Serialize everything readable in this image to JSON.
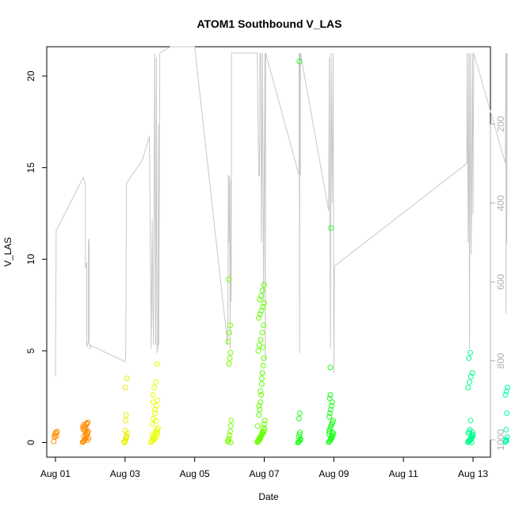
{
  "chart_data": {
    "type": "scatter",
    "title": "ATOM1 Southbound V_LAS",
    "xlabel": "Date",
    "ylabel": "V_LAS",
    "x_ticks": [
      "Aug 01",
      "Aug 03",
      "Aug 05",
      "Aug 07",
      "Aug 09",
      "Aug 11",
      "Aug 13"
    ],
    "y_ticks": [
      "0",
      "5",
      "10",
      "15",
      "20"
    ],
    "y2_ticks": [
      "200",
      "400",
      "600",
      "800",
      "1000"
    ],
    "xlim_days": [
      -0.25,
      12.5
    ],
    "ylim": [
      -0.8,
      21.6
    ],
    "y2lim": [
      1044,
      4
    ],
    "grid": false,
    "legend": "none",
    "colors": {
      "line": "#c8c8c8",
      "right_axis": "#b0b0b0",
      "ramp": [
        "#ff8000",
        "#ffff00",
        "#00ff00",
        "#00ffc0"
      ]
    },
    "groups": [
      {
        "color": "#ff8c00",
        "x": [
          -0.05,
          -0.03,
          -0.02,
          0,
          0.01,
          0.03,
          0.05
        ],
        "y": [
          0.05,
          0.3,
          0.4,
          0.5,
          0.55,
          0.35,
          0.6
        ]
      },
      {
        "color": "#ff8c00",
        "x": [
          0.78,
          0.8,
          0.82,
          0.84,
          0.86,
          0.88,
          0.9,
          0.92,
          0.94,
          0.8,
          0.83,
          0.86,
          0.9,
          0.93,
          0.95,
          0.82,
          0.88,
          0.91,
          0.85,
          0.87,
          0.79,
          0.81,
          0.89,
          0.92
        ],
        "y": [
          0.02,
          0.05,
          0.1,
          0.15,
          0.2,
          0.3,
          0.4,
          0.5,
          0.6,
          0.7,
          0.8,
          0.9,
          1.0,
          1.1,
          0.25,
          0.35,
          0.45,
          0.55,
          0.65,
          0.75,
          0.85,
          0.95,
          1.05,
          0.12
        ]
      },
      {
        "color": "#e6f000",
        "x": [
          1.98,
          2,
          2.02,
          2.04,
          2.06,
          2.0,
          2.02,
          2.03,
          2.01,
          2.05,
          1.99,
          2.04
        ],
        "y": [
          0.05,
          0.1,
          0.2,
          0.35,
          0.5,
          0.65,
          1.2,
          1.5,
          3.0,
          3.5,
          0.0,
          0.3
        ]
      },
      {
        "color": "#e6ff00",
        "x": [
          2.75,
          2.78,
          2.8,
          2.82,
          2.85,
          2.88,
          2.9,
          2.92,
          2.95,
          2.78,
          2.82,
          2.86,
          2.9,
          2.94,
          2.8,
          2.84,
          2.88,
          2.92,
          2.76,
          2.83,
          2.87,
          2.91,
          2.79,
          2.93,
          2.86,
          2.81,
          2.89
        ],
        "y": [
          0.02,
          0.1,
          0.2,
          0.3,
          0.4,
          0.5,
          0.6,
          0.7,
          0.8,
          1.0,
          1.3,
          1.6,
          2.0,
          2.3,
          2.6,
          3.0,
          3.3,
          4.3,
          0.05,
          0.15,
          0.25,
          0.35,
          0.45,
          0.55,
          1.8,
          2.2,
          1.2
        ]
      },
      {
        "color": "#7cfc00",
        "x": [
          4.95,
          4.97,
          4.98,
          5.0,
          5.02,
          5.04,
          5.05,
          4.99,
          5.01,
          5.03,
          4.96,
          5.0,
          5.02,
          4.98,
          5.04
        ],
        "y": [
          0.05,
          0.1,
          0.2,
          0.4,
          0.6,
          0.9,
          1.2,
          4.3,
          4.6,
          4.9,
          5.5,
          6.0,
          6.4,
          8.9,
          0.0
        ]
      },
      {
        "color": "#66ff00",
        "x": [
          5.8,
          5.82,
          5.84,
          5.86,
          5.88,
          5.9,
          5.92,
          5.94,
          5.96,
          5.98,
          6.0,
          6.02,
          5.85,
          5.87,
          5.89,
          5.91,
          5.93,
          5.95,
          5.97,
          5.99,
          5.83,
          5.86,
          5.9,
          5.94,
          5.98,
          5.84,
          5.88,
          5.92,
          5.96,
          6.0,
          5.87,
          5.91,
          5.95,
          5.99,
          5.82,
          5.86,
          5.9,
          5.94,
          5.98,
          6.01,
          5.81,
          5.85,
          5.89,
          5.93,
          5.97
        ],
        "y": [
          0.02,
          0.05,
          0.1,
          0.15,
          0.2,
          0.3,
          0.4,
          0.5,
          0.6,
          0.8,
          1.0,
          1.2,
          1.5,
          1.8,
          2.2,
          2.6,
          3.2,
          3.8,
          4.2,
          4.6,
          5.0,
          5.3,
          5.6,
          6.0,
          6.4,
          6.8,
          7.0,
          7.2,
          7.4,
          7.6,
          7.8,
          8.0,
          8.3,
          8.6,
          0.1,
          0.25,
          0.35,
          0.45,
          0.55,
          0.7,
          0.9,
          2.0,
          2.8,
          3.5,
          5.2
        ]
      },
      {
        "color": "#20ff20",
        "x": [
          6.98,
          7.0,
          7.02,
          7.04,
          6.99,
          7.01,
          7.03,
          7.0,
          7.02,
          6.97,
          7.04,
          7.01
        ],
        "y": [
          0.02,
          0.05,
          0.1,
          0.2,
          0.3,
          0.45,
          0.55,
          1.3,
          1.6,
          0.0,
          0.15,
          20.8
        ]
      },
      {
        "color": "#20ff20",
        "x": [
          7.85,
          7.87,
          7.89,
          7.91,
          7.93,
          7.95,
          7.97,
          7.99,
          7.86,
          7.88,
          7.9,
          7.92,
          7.94,
          7.96,
          7.98,
          7.87,
          7.89,
          7.91,
          7.93,
          7.95,
          7.88,
          7.9,
          7.92,
          7.94,
          7.86,
          7.9,
          7.96,
          7.92
        ],
        "y": [
          0.02,
          0.05,
          0.1,
          0.15,
          0.2,
          0.3,
          0.4,
          0.5,
          0.6,
          0.7,
          0.8,
          0.9,
          1.0,
          1.1,
          1.2,
          1.4,
          1.6,
          1.8,
          2.0,
          2.2,
          2.4,
          2.6,
          0.25,
          0.35,
          0.45,
          4.1,
          0.55,
          11.7
        ]
      },
      {
        "color": "#00ff90",
        "x": [
          11.85,
          11.88,
          11.9,
          11.92,
          11.94,
          11.96,
          11.98,
          12.0,
          11.87,
          11.89,
          11.91,
          11.93,
          11.95,
          11.97,
          11.99,
          11.86,
          11.9,
          11.94,
          11.98,
          11.88,
          11.92,
          11.96,
          11.87,
          11.91,
          11.95
        ],
        "y": [
          0.02,
          0.05,
          0.1,
          0.15,
          0.2,
          0.25,
          0.3,
          0.4,
          0.5,
          0.6,
          0.7,
          1.2,
          0.35,
          0.45,
          0.55,
          3.0,
          3.3,
          3.6,
          3.8,
          4.6,
          4.9,
          0.0,
          0.08,
          0.12,
          0.18
        ]
      },
      {
        "color": "#00ffb4",
        "x": [
          12.92,
          12.94,
          12.96,
          12.98,
          12.95,
          12.97,
          12.93,
          12.96,
          12.99,
          12.95
        ],
        "y": [
          0.02,
          0.05,
          0.1,
          0.3,
          0.7,
          1.6,
          2.6,
          2.8,
          3.0,
          0.15
        ]
      }
    ],
    "line_series": {
      "color": "#c8c8c8",
      "x": [
        0,
        0.02,
        0.8,
        0.86,
        0.86,
        0.9,
        0.9,
        0.95,
        0.95,
        0.97,
        0.97,
        1.0,
        1.0,
        2.0,
        2.02,
        2.04,
        2.04,
        2.5,
        2.7,
        2.75,
        2.78,
        2.8,
        2.82,
        2.85,
        2.88,
        2.9,
        2.92,
        2.95,
        2.96,
        2.97,
        3.0,
        3.3,
        4.0,
        4.95,
        4.97,
        4.98,
        5.0,
        5.02,
        5.04,
        5.05,
        5.06,
        5.8,
        5.84,
        5.86,
        5.88,
        5.9,
        5.92,
        5.95,
        5.98,
        6.0,
        6.02,
        6.03,
        6.04,
        7.0,
        7.0,
        7.02,
        7.02,
        7.04,
        7.04,
        7.85,
        7.87,
        7.9,
        7.92,
        7.95,
        7.98,
        8.0,
        8.02,
        11.82,
        11.83,
        11.86,
        11.88,
        11.9,
        11.92,
        11.95,
        11.98,
        12.0,
        12.02,
        12.93,
        12.94,
        12.95,
        12.96,
        12.97,
        12.98
      ],
      "y2": [
        840,
        470,
        335,
        355,
        565,
        550,
        765,
        750,
        500,
        490,
        755,
        770,
        760,
        802,
        790,
        360,
        350,
        290,
        230,
        770,
        440,
        665,
        760,
        20,
        760,
        30,
        780,
        760,
        200,
        760,
        20,
        4,
        4,
        760,
        330,
        500,
        330,
        770,
        340,
        650,
        20,
        20,
        330,
        330,
        20,
        20,
        500,
        20,
        650,
        330,
        20,
        800,
        20,
        330,
        20,
        780,
        20,
        330,
        20,
        420,
        30,
        770,
        20,
        400,
        20,
        830,
        560,
        300,
        20,
        500,
        20,
        770,
        20,
        530,
        20,
        430,
        20,
        300,
        20,
        680,
        20,
        500,
        20
      ]
    }
  }
}
